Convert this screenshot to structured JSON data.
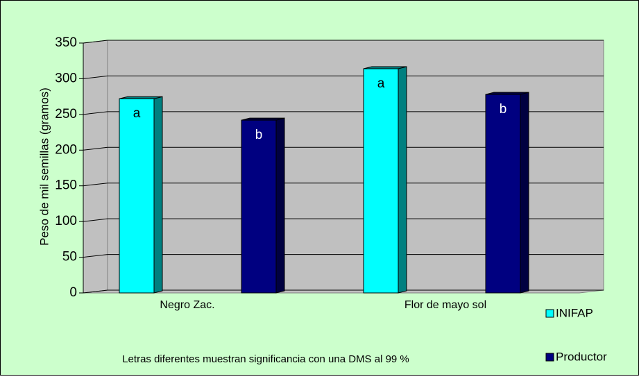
{
  "chart_data": {
    "type": "bar3d",
    "y_axis_label": "Peso de mil semillas (gramos)",
    "categories": [
      "Negro Zac.",
      "Flor de mayo sol"
    ],
    "series": [
      {
        "name": "INIFAP",
        "color": "#00ffff",
        "side_color": "#008080",
        "values": [
          272,
          314
        ],
        "letters": [
          "a",
          "a"
        ]
      },
      {
        "name": "Productor",
        "color": "#000080",
        "side_color": "#000040",
        "values": [
          242,
          278
        ],
        "letters": [
          "b",
          "b"
        ]
      }
    ],
    "ylim": [
      0,
      350
    ],
    "yticks": [
      0,
      50,
      100,
      150,
      200,
      250,
      300,
      350
    ],
    "grid": true,
    "note": "Letras diferentes muestran significancia con una DMS al 99 %",
    "legend": "right"
  }
}
